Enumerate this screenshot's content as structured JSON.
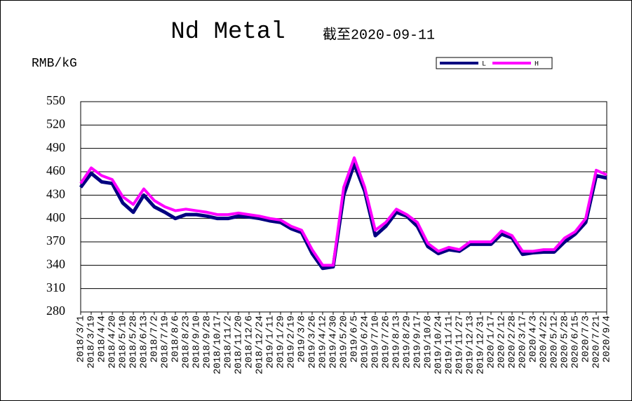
{
  "chart_data": {
    "type": "line",
    "title": "Nd Metal",
    "subtitle": "截至2020-09-11",
    "y_label": "RMB/kG",
    "categories": [
      "2018/3/1",
      "2018/3/19",
      "2018/4/4",
      "2018/4/20",
      "2018/5/10",
      "2018/5/28",
      "2018/6/13",
      "2018/7/2",
      "2018/7/19",
      "2018/8/6",
      "2018/8/23",
      "2018/9/10",
      "2018/9/28",
      "2018/10/17",
      "2018/11/2",
      "2018/11/20",
      "2018/12/6",
      "2018/12/24",
      "2019/1/11",
      "2019/1/29",
      "2019/2/19",
      "2019/3/8",
      "2019/3/26",
      "2019/4/12",
      "2019/4/30",
      "2019/5/20",
      "2019/6/5",
      "2019/6/24",
      "2019/7/10",
      "2019/7/26",
      "2019/8/13",
      "2019/8/29",
      "2019/9/17",
      "2019/10/8",
      "2019/10/24",
      "2019/11/11",
      "2019/11/27",
      "2019/12/13",
      "2019/12/31",
      "2020/1/17",
      "2020/2/12",
      "2020/2/28",
      "2020/3/17",
      "2020/4/3",
      "2020/4/22",
      "2020/5/12",
      "2020/5/28",
      "2020/6/15",
      "2020/7/3",
      "2020/7/21",
      "2020/9/4"
    ],
    "series": [
      {
        "name": "L",
        "color": "#000080",
        "values": [
          440,
          458,
          447,
          445,
          420,
          408,
          430,
          415,
          408,
          400,
          405,
          405,
          403,
          400,
          400,
          403,
          402,
          400,
          397,
          395,
          387,
          382,
          355,
          336,
          338,
          430,
          470,
          435,
          378,
          390,
          408,
          403,
          390,
          364,
          355,
          360,
          358,
          367,
          367,
          367,
          380,
          375,
          354,
          356,
          357,
          357,
          370,
          380,
          395,
          455,
          452
        ]
      },
      {
        "name": "H",
        "color": "#ff00ff",
        "values": [
          445,
          465,
          455,
          450,
          428,
          418,
          438,
          423,
          415,
          410,
          412,
          410,
          408,
          405,
          405,
          407,
          405,
          403,
          400,
          398,
          390,
          385,
          360,
          340,
          340,
          440,
          478,
          440,
          385,
          395,
          412,
          405,
          395,
          368,
          358,
          363,
          360,
          370,
          370,
          370,
          384,
          378,
          358,
          358,
          360,
          360,
          375,
          383,
          400,
          462,
          456
        ]
      }
    ],
    "ylim": [
      280,
      550
    ],
    "yticks": [
      280,
      310,
      340,
      370,
      400,
      430,
      460,
      490,
      520,
      550
    ],
    "grid": true,
    "legend": "top-right"
  }
}
